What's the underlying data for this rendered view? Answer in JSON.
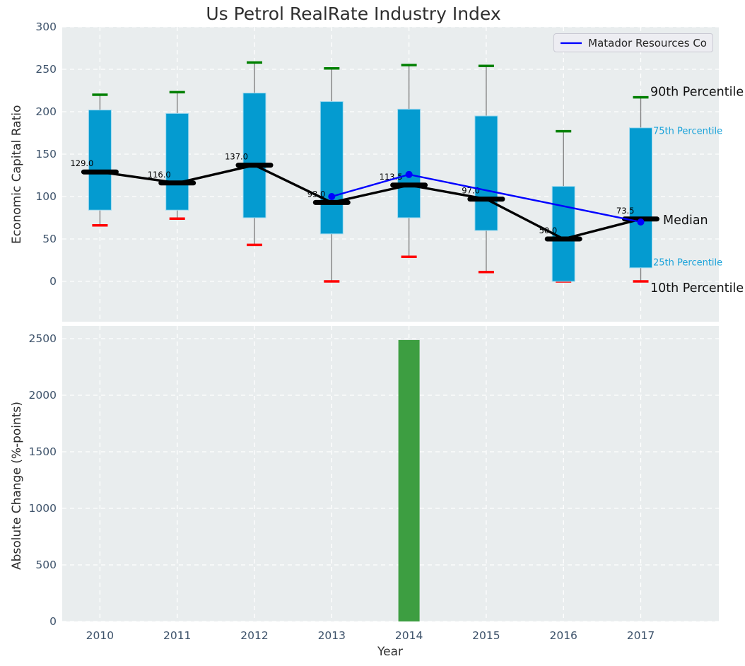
{
  "title": "Us Petrol RealRate Industry Index",
  "legend": {
    "label": "Matador Resources Co"
  },
  "colors": {
    "box_fill": "#049bd0",
    "box_edge": "#9fd9ef",
    "whisker": "#808080",
    "cap_high": "#008000",
    "cap_low": "#ff0000",
    "median": "#000000",
    "line": "#0000ff",
    "bar": "#3d9e41",
    "axes_bg": "#e9edee",
    "grid": "#ffffff",
    "tick": "#3e536b",
    "annotation_major": "#111111",
    "annotation_minor": "#1ba3da"
  },
  "chart_data": [
    {
      "type": "boxplot",
      "title": "Us Petrol RealRate Industry Index",
      "ylabel": "Economic Capital Ratio",
      "categories": [
        "2010",
        "2011",
        "2012",
        "2013",
        "2014",
        "2015",
        "2016",
        "2017"
      ],
      "ylim": [
        -47.5,
        300
      ],
      "yticks": [
        0,
        50,
        100,
        150,
        200,
        250,
        300
      ],
      "grid": true,
      "legend_position": "upper right",
      "series": {
        "p90": [
          220,
          223,
          258,
          251,
          255,
          254,
          177,
          217
        ],
        "p75": [
          202,
          198,
          222,
          212,
          203,
          195,
          112,
          181
        ],
        "median": [
          129.0,
          116.0,
          137.0,
          93.0,
          113.5,
          97.0,
          50.0,
          73.5
        ],
        "p25": [
          84,
          84,
          75,
          56,
          75,
          60,
          0,
          16
        ],
        "p10": [
          66,
          74,
          43,
          0,
          29,
          11,
          0,
          0
        ]
      },
      "median_labels": [
        "129.0",
        "116.0",
        "137.0",
        "93.0",
        "113.5",
        "97.0",
        "50.0",
        "73.5"
      ],
      "line_series": {
        "name": "Matador Resources Co",
        "x": [
          "2013",
          "2014",
          "2017"
        ],
        "y": [
          100,
          126,
          70
        ]
      },
      "annotations": [
        {
          "text": "90th Percentile",
          "anchor": "p90",
          "style": "major"
        },
        {
          "text": "75th Percentile",
          "anchor": "p75",
          "style": "minor"
        },
        {
          "text": "Median",
          "anchor": "median",
          "style": "major"
        },
        {
          "text": "25th Percentile",
          "anchor": "p25",
          "style": "minor"
        },
        {
          "text": "10th Percentile",
          "anchor": "p10",
          "style": "major"
        }
      ]
    },
    {
      "type": "bar",
      "ylabel": "Absolute Change (%-points)",
      "xlabel": "Year",
      "categories": [
        "2010",
        "2011",
        "2012",
        "2013",
        "2014",
        "2015",
        "2016",
        "2017"
      ],
      "values": [
        0,
        0,
        0,
        0,
        2488,
        0,
        0,
        0
      ],
      "yticks": [
        0,
        500,
        1000,
        1500,
        2000,
        2500
      ],
      "ylim": [
        0,
        2610
      ],
      "grid": true
    }
  ]
}
